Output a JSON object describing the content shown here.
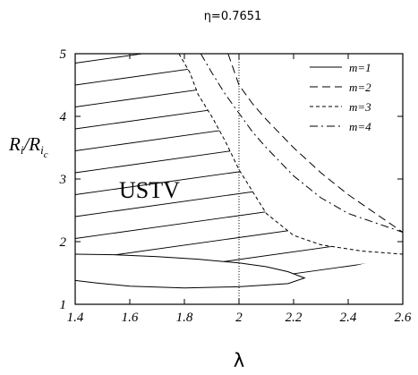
{
  "chart_data": {
    "type": "line",
    "title": "η=0.7651",
    "xlabel": "λ",
    "ylabel_main": "R",
    "ylabel_sub1": "i",
    "ylabel_sep": "/R",
    "ylabel_sub2": "i",
    "ylabel_sub3": "c",
    "xlim": [
      1.4,
      2.6
    ],
    "ylim": [
      1,
      5
    ],
    "xticks": [
      1.4,
      1.6,
      1.8,
      2.0,
      2.2,
      2.4,
      2.6
    ],
    "xtick_labels": [
      "1.4",
      "1.6",
      "1.8",
      "2",
      "2.2",
      "2.4",
      "2.6"
    ],
    "yticks": [
      1,
      2,
      3,
      4,
      5
    ],
    "ytick_labels": [
      "1",
      "2",
      "3",
      "4",
      "5"
    ],
    "grid": false,
    "legend_position": "top-right",
    "annotation": "USTV",
    "reference_line_x": 2.0,
    "series": [
      {
        "name": "m=1",
        "dash": "solid",
        "points": [
          [
            1.4,
            1.8
          ],
          [
            1.55,
            1.79
          ],
          [
            1.7,
            1.76
          ],
          [
            1.85,
            1.72
          ],
          [
            2.0,
            1.66
          ],
          [
            2.1,
            1.6
          ],
          [
            2.18,
            1.52
          ],
          [
            2.24,
            1.42
          ],
          [
            2.18,
            1.33
          ],
          [
            2.0,
            1.28
          ],
          [
            1.8,
            1.26
          ],
          [
            1.6,
            1.29
          ],
          [
            1.48,
            1.34
          ],
          [
            1.4,
            1.38
          ]
        ]
      },
      {
        "name": "m=2",
        "dash": "dashed",
        "points": [
          [
            1.96,
            5.0
          ],
          [
            2.0,
            4.5
          ],
          [
            2.05,
            4.2
          ],
          [
            2.1,
            3.95
          ],
          [
            2.2,
            3.5
          ],
          [
            2.3,
            3.1
          ],
          [
            2.4,
            2.75
          ],
          [
            2.5,
            2.45
          ],
          [
            2.6,
            2.15
          ]
        ]
      },
      {
        "name": "m=3",
        "dash": "dotted",
        "points": [
          [
            1.78,
            5.0
          ],
          [
            1.82,
            4.7
          ],
          [
            1.85,
            4.35
          ],
          [
            1.9,
            4.0
          ],
          [
            1.95,
            3.6
          ],
          [
            2.0,
            3.15
          ],
          [
            2.05,
            2.8
          ],
          [
            2.1,
            2.45
          ],
          [
            2.2,
            2.1
          ],
          [
            2.3,
            1.95
          ],
          [
            2.45,
            1.85
          ],
          [
            2.6,
            1.8
          ]
        ]
      },
      {
        "name": "m=4",
        "dash": "dash-dot",
        "points": [
          [
            1.86,
            5.0
          ],
          [
            1.9,
            4.7
          ],
          [
            1.95,
            4.35
          ],
          [
            2.0,
            4.05
          ],
          [
            2.05,
            3.75
          ],
          [
            2.1,
            3.5
          ],
          [
            2.2,
            3.05
          ],
          [
            2.3,
            2.7
          ],
          [
            2.4,
            2.45
          ],
          [
            2.5,
            2.3
          ],
          [
            2.6,
            2.15
          ]
        ]
      }
    ]
  }
}
